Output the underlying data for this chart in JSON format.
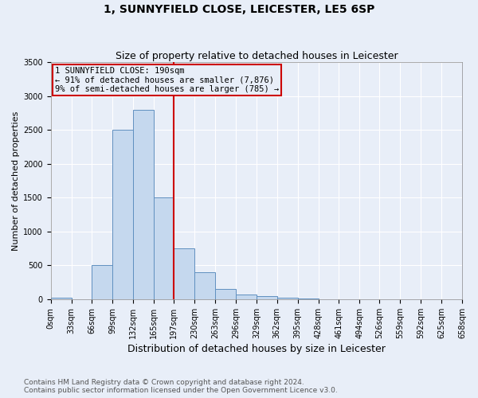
{
  "title": "1, SUNNYFIELD CLOSE, LEICESTER, LE5 6SP",
  "subtitle": "Size of property relative to detached houses in Leicester",
  "xlabel": "Distribution of detached houses by size in Leicester",
  "ylabel": "Number of detached properties",
  "footnote1": "Contains HM Land Registry data © Crown copyright and database right 2024.",
  "footnote2": "Contains public sector information licensed under the Open Government Licence v3.0.",
  "bin_labels": [
    "0sqm",
    "33sqm",
    "66sqm",
    "99sqm",
    "132sqm",
    "165sqm",
    "197sqm",
    "230sqm",
    "263sqm",
    "296sqm",
    "329sqm",
    "362sqm",
    "395sqm",
    "428sqm",
    "461sqm",
    "494sqm",
    "526sqm",
    "559sqm",
    "592sqm",
    "625sqm",
    "658sqm"
  ],
  "bin_edges": [
    0,
    33,
    66,
    99,
    132,
    165,
    197,
    230,
    263,
    296,
    329,
    362,
    395,
    428,
    461,
    494,
    526,
    559,
    592,
    625,
    658
  ],
  "bar_heights": [
    20,
    2,
    500,
    2500,
    2800,
    1500,
    750,
    400,
    150,
    75,
    50,
    25,
    10,
    5,
    2,
    1,
    1,
    0,
    0,
    0
  ],
  "bar_color": "#c5d8ee",
  "bar_edge_color": "#6090c0",
  "property_line_x": 197,
  "property_line_color": "#cc0000",
  "annotation_line1": "1 SUNNYFIELD CLOSE: 190sqm",
  "annotation_line2": "← 91% of detached houses are smaller (7,876)",
  "annotation_line3": "9% of semi-detached houses are larger (785) →",
  "annotation_box_color": "#cc0000",
  "ylim": [
    0,
    3500
  ],
  "yticks": [
    0,
    500,
    1000,
    1500,
    2000,
    2500,
    3000,
    3500
  ],
  "bg_color": "#e8eef8",
  "grid_color": "#ffffff",
  "title_fontsize": 10,
  "subtitle_fontsize": 9,
  "xlabel_fontsize": 9,
  "ylabel_fontsize": 8,
  "tick_fontsize": 7,
  "annot_fontsize": 7.5,
  "footnote_fontsize": 6.5
}
